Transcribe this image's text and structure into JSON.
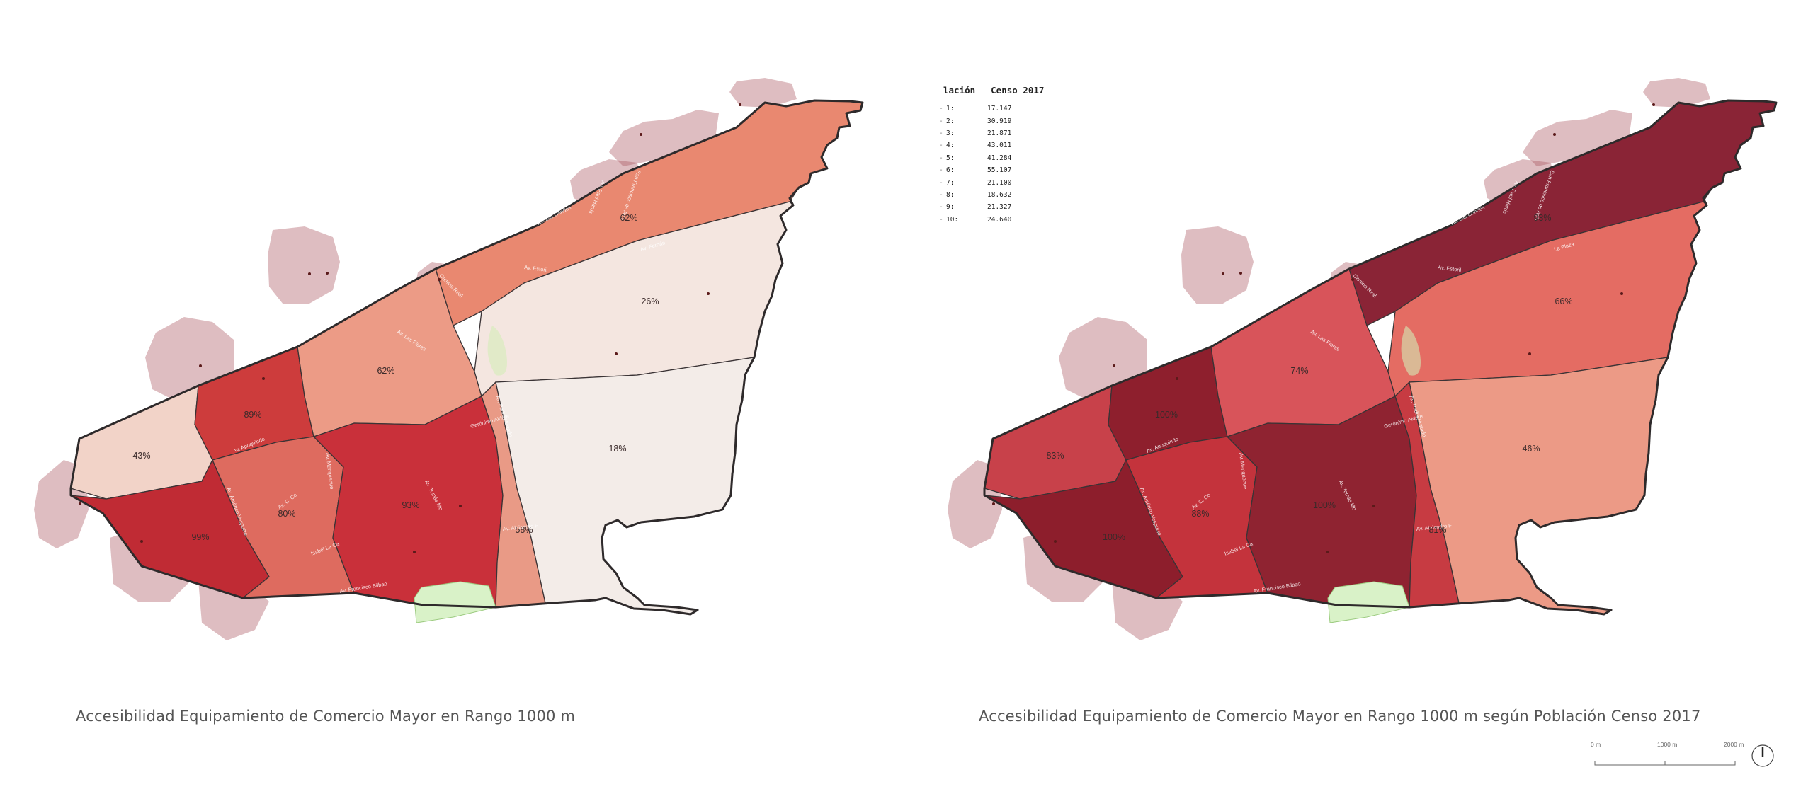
{
  "captions": {
    "left": "Accesibilidad Equipamiento de Comercio Mayor en Rango 1000 m",
    "right": "Accesibilidad Equipamiento de Comercio Mayor en Rango 1000 m según Población Censo 2017"
  },
  "legend": {
    "header_left": "lación",
    "header_right": "Censo 2017",
    "rows": [
      {
        "label": "1:",
        "value": "17.147"
      },
      {
        "label": "2:",
        "value": "30.919"
      },
      {
        "label": "3:",
        "value": "21.871"
      },
      {
        "label": "4:",
        "value": "43.011"
      },
      {
        "label": "5:",
        "value": "41.284"
      },
      {
        "label": "6:",
        "value": "55.107"
      },
      {
        "label": "7:",
        "value": "21.100"
      },
      {
        "label": "8:",
        "value": "18.632"
      },
      {
        "label": "9:",
        "value": "21.327"
      },
      {
        "label": "10:",
        "value": "24.640"
      }
    ]
  },
  "scale": {
    "labels": [
      "0 m",
      "1000 m",
      "2000 m"
    ]
  },
  "maps": {
    "left": {
      "zones": [
        {
          "id": "z1",
          "label": "43%",
          "color": "#f2d3c8"
        },
        {
          "id": "z2",
          "label": "89%",
          "color": "#cd3c3c"
        },
        {
          "id": "z3",
          "label": "62%",
          "color": "#ec9b86"
        },
        {
          "id": "z4",
          "label": "62%",
          "color": "#e98870"
        },
        {
          "id": "z5",
          "label": "26%",
          "color": "#f4e6e0"
        },
        {
          "id": "z6",
          "label": "99%",
          "color": "#c02b34"
        },
        {
          "id": "z7",
          "label": "80%",
          "color": "#de6b5f"
        },
        {
          "id": "z8",
          "label": "93%",
          "color": "#c9303a"
        },
        {
          "id": "z9",
          "label": "58%",
          "color": "#e99a86"
        },
        {
          "id": "z10",
          "label": "18%",
          "color": "#f3ece8"
        }
      ],
      "streets": [
        "Av. Las Condes",
        "San Francisco de Asís",
        "Av. Paul Harris",
        "Camino Real",
        "Av. Estoril",
        "Av. Padre Hurtado",
        "Av. Las Flores",
        "Av. Apoquindo",
        "Av. Manquehue",
        "Av. Vitacura",
        "Gerónimo Alderete",
        "Av. C. Colón",
        "Isabel La Católica",
        "Av. Francisco Bilbao",
        "Av. Américo Vespucio",
        "Av. Tomás Moro",
        "Av. Alejandro Fleming",
        "Av. Fernández Concha",
        "Av. Las Condes"
      ]
    },
    "right": {
      "zones": [
        {
          "id": "z1",
          "label": "83%",
          "color": "#c8414a"
        },
        {
          "id": "z2",
          "label": "100%",
          "color": "#8e1f2d"
        },
        {
          "id": "z3",
          "label": "74%",
          "color": "#d8545a"
        },
        {
          "id": "z4",
          "label": "93%",
          "color": "#8a2436"
        },
        {
          "id": "z5",
          "label": "66%",
          "color": "#e46c63"
        },
        {
          "id": "z6",
          "label": "100%",
          "color": "#8d1e2c"
        },
        {
          "id": "z7",
          "label": "88%",
          "color": "#c4333c"
        },
        {
          "id": "z8",
          "label": "100%",
          "color": "#8f2331"
        },
        {
          "id": "z9",
          "label": "81%",
          "color": "#c73b42"
        },
        {
          "id": "z10",
          "label": "46%",
          "color": "#ec9a86"
        }
      ],
      "streets": [
        "Av. Las Condes",
        "San Francisco de Asís",
        "Av. Paul Harris",
        "Camino Real",
        "Av. Estoril",
        "Av. Padre Hurtado",
        "Av. Las Flores",
        "Av. Apoquindo",
        "Av. Manquehue",
        "Av. Vitacura",
        "Gerónimo Alderete",
        "Av. C. Colón",
        "Isabel La Católica",
        "Av. Francisco Bilbao",
        "Av. Américo Vespucio",
        "Av. Tomás Moro",
        "Av. Alejandro Fleming",
        "La Plaza",
        "Av. Las Condes"
      ]
    }
  },
  "colors": {
    "outline": "#2e2a2b",
    "buffer": "#a8525c",
    "park": "#d9f2c8"
  },
  "icons": {
    "north_arrow": "north-arrow-icon"
  }
}
